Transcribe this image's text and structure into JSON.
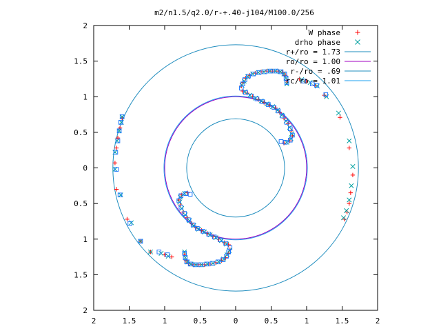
{
  "chart_data": {
    "type": "scatter",
    "title": "m2/n1.5/q2.0/r-+.40-j104/M100.0/256",
    "xlim": [
      -2,
      2
    ],
    "ylim": [
      -2,
      2
    ],
    "x_ticks": [
      {
        "value": -2,
        "label": "2"
      },
      {
        "value": -1.5,
        "label": "1.5"
      },
      {
        "value": -1,
        "label": "1"
      },
      {
        "value": -0.5,
        "label": "0.5"
      },
      {
        "value": 0,
        "label": "0"
      },
      {
        "value": 0.5,
        "label": "0.5"
      },
      {
        "value": 1,
        "label": "1"
      },
      {
        "value": 1.5,
        "label": "1.5"
      },
      {
        "value": 2,
        "label": "2"
      }
    ],
    "y_ticks": [
      {
        "value": 2,
        "label": "2"
      },
      {
        "value": 1.5,
        "label": "1.5"
      },
      {
        "value": 1,
        "label": "1"
      },
      {
        "value": 0.5,
        "label": "0.5"
      },
      {
        "value": 0,
        "label": "0"
      },
      {
        "value": -0.5,
        "label": "0.5"
      },
      {
        "value": -1,
        "label": "1"
      },
      {
        "value": -1.5,
        "label": "1.5"
      },
      {
        "value": -2,
        "label": "2"
      }
    ],
    "legend_position": "top-right",
    "grid": false,
    "series": [
      {
        "name": "W phase",
        "marker": "plus",
        "color": "#ff0000",
        "points": [
          [
            0.08,
            1.15
          ],
          [
            0.1,
            1.2
          ],
          [
            0.14,
            1.26
          ],
          [
            0.2,
            1.3
          ],
          [
            0.28,
            1.33
          ],
          [
            0.36,
            1.35
          ],
          [
            0.44,
            1.36
          ],
          [
            0.52,
            1.36
          ],
          [
            0.6,
            1.36
          ],
          [
            0.66,
            1.34
          ],
          [
            0.7,
            1.3
          ],
          [
            0.72,
            1.22
          ],
          [
            0.1,
            1.08
          ],
          [
            0.16,
            1.05
          ],
          [
            0.24,
            1.0
          ],
          [
            0.32,
            0.96
          ],
          [
            0.4,
            0.92
          ],
          [
            0.48,
            0.88
          ],
          [
            0.56,
            0.84
          ],
          [
            0.62,
            0.78
          ],
          [
            0.68,
            0.7
          ],
          [
            0.74,
            0.62
          ],
          [
            0.78,
            0.52
          ],
          [
            0.8,
            0.45
          ],
          [
            0.76,
            0.38
          ],
          [
            0.68,
            0.35
          ],
          [
            0.9,
            1.25
          ],
          [
            1.0,
            1.22
          ],
          [
            1.12,
            1.16
          ],
          [
            1.25,
            1.02
          ],
          [
            1.47,
            0.71
          ],
          [
            1.6,
            0.28
          ],
          [
            1.65,
            -0.1
          ],
          [
            1.62,
            -0.35
          ],
          [
            1.6,
            -0.5
          ],
          [
            1.57,
            -0.62
          ],
          [
            1.53,
            -0.72
          ],
          [
            -0.08,
            -1.15
          ],
          [
            -0.1,
            -1.2
          ],
          [
            -0.14,
            -1.26
          ],
          [
            -0.2,
            -1.3
          ],
          [
            -0.28,
            -1.33
          ],
          [
            -0.36,
            -1.35
          ],
          [
            -0.44,
            -1.36
          ],
          [
            -0.52,
            -1.36
          ],
          [
            -0.6,
            -1.36
          ],
          [
            -0.66,
            -1.34
          ],
          [
            -0.7,
            -1.3
          ],
          [
            -0.72,
            -1.22
          ],
          [
            -0.1,
            -1.08
          ],
          [
            -0.16,
            -1.05
          ],
          [
            -0.24,
            -1.0
          ],
          [
            -0.32,
            -0.96
          ],
          [
            -0.4,
            -0.92
          ],
          [
            -0.48,
            -0.88
          ],
          [
            -0.56,
            -0.84
          ],
          [
            -0.62,
            -0.78
          ],
          [
            -0.68,
            -0.7
          ],
          [
            -0.74,
            -0.62
          ],
          [
            -0.78,
            -0.52
          ],
          [
            -0.8,
            -0.45
          ],
          [
            -0.76,
            -0.38
          ],
          [
            -0.68,
            -0.35
          ],
          [
            -0.9,
            -1.25
          ],
          [
            -1.0,
            -1.22
          ],
          [
            -1.2,
            -1.18
          ],
          [
            -1.34,
            -1.03
          ],
          [
            -1.53,
            -0.72
          ],
          [
            -1.68,
            -0.3
          ],
          [
            -1.7,
            0.07
          ],
          [
            -1.68,
            0.28
          ],
          [
            -1.66,
            0.42
          ],
          [
            -1.63,
            0.56
          ],
          [
            -1.6,
            0.7
          ]
        ]
      },
      {
        "name": "drho phase",
        "marker": "cross",
        "color": "#00a0a0",
        "points": [
          [
            0.09,
            1.16
          ],
          [
            0.12,
            1.22
          ],
          [
            0.17,
            1.28
          ],
          [
            0.24,
            1.32
          ],
          [
            0.32,
            1.34
          ],
          [
            0.4,
            1.35
          ],
          [
            0.48,
            1.36
          ],
          [
            0.56,
            1.36
          ],
          [
            0.63,
            1.35
          ],
          [
            0.68,
            1.32
          ],
          [
            0.71,
            1.26
          ],
          [
            0.72,
            1.18
          ],
          [
            0.13,
            1.07
          ],
          [
            0.2,
            1.02
          ],
          [
            0.28,
            0.98
          ],
          [
            0.36,
            0.94
          ],
          [
            0.44,
            0.9
          ],
          [
            0.52,
            0.86
          ],
          [
            0.59,
            0.81
          ],
          [
            0.65,
            0.74
          ],
          [
            0.71,
            0.66
          ],
          [
            0.76,
            0.57
          ],
          [
            0.79,
            0.48
          ],
          [
            0.78,
            0.41
          ],
          [
            0.72,
            0.36
          ],
          [
            0.93,
            1.24
          ],
          [
            1.05,
            1.2
          ],
          [
            1.15,
            1.15
          ],
          [
            1.28,
            1.0
          ],
          [
            1.45,
            0.77
          ],
          [
            1.6,
            0.38
          ],
          [
            1.65,
            0.02
          ],
          [
            1.63,
            -0.25
          ],
          [
            1.6,
            -0.45
          ],
          [
            1.56,
            -0.6
          ],
          [
            1.52,
            -0.7
          ],
          [
            -0.09,
            -1.16
          ],
          [
            -0.12,
            -1.22
          ],
          [
            -0.17,
            -1.28
          ],
          [
            -0.24,
            -1.32
          ],
          [
            -0.32,
            -1.34
          ],
          [
            -0.4,
            -1.35
          ],
          [
            -0.48,
            -1.36
          ],
          [
            -0.56,
            -1.36
          ],
          [
            -0.63,
            -1.35
          ],
          [
            -0.68,
            -1.32
          ],
          [
            -0.71,
            -1.26
          ],
          [
            -0.72,
            -1.18
          ],
          [
            -0.13,
            -1.07
          ],
          [
            -0.2,
            -1.02
          ],
          [
            -0.28,
            -0.98
          ],
          [
            -0.36,
            -0.94
          ],
          [
            -0.44,
            -0.9
          ],
          [
            -0.52,
            -0.86
          ],
          [
            -0.59,
            -0.81
          ],
          [
            -0.65,
            -0.74
          ],
          [
            -0.71,
            -0.66
          ],
          [
            -0.76,
            -0.57
          ],
          [
            -0.79,
            -0.48
          ],
          [
            -0.78,
            -0.41
          ],
          [
            -0.72,
            -0.36
          ],
          [
            -0.95,
            -1.24
          ],
          [
            -1.05,
            -1.2
          ],
          [
            -1.2,
            -1.18
          ],
          [
            -1.34,
            -1.03
          ],
          [
            -1.47,
            -0.77
          ],
          [
            -1.62,
            -0.38
          ],
          [
            -1.7,
            -0.02
          ],
          [
            -1.7,
            0.22
          ],
          [
            -1.67,
            0.38
          ],
          [
            -1.64,
            0.52
          ],
          [
            -1.61,
            0.64
          ],
          [
            -1.6,
            0.72
          ]
        ]
      },
      {
        "name": "",
        "marker": "square",
        "color": "#1e78ff",
        "points": [
          [
            0.08,
            1.12
          ],
          [
            0.1,
            1.18
          ],
          [
            0.13,
            1.24
          ],
          [
            0.18,
            1.29
          ],
          [
            0.25,
            1.32
          ],
          [
            0.33,
            1.34
          ],
          [
            0.41,
            1.35
          ],
          [
            0.49,
            1.36
          ],
          [
            0.57,
            1.36
          ],
          [
            0.64,
            1.35
          ],
          [
            0.69,
            1.32
          ],
          [
            0.71,
            1.26
          ],
          [
            0.72,
            1.2
          ],
          [
            0.14,
            1.06
          ],
          [
            0.22,
            1.01
          ],
          [
            0.3,
            0.97
          ],
          [
            0.38,
            0.93
          ],
          [
            0.46,
            0.89
          ],
          [
            0.54,
            0.85
          ],
          [
            0.6,
            0.8
          ],
          [
            0.66,
            0.73
          ],
          [
            0.72,
            0.64
          ],
          [
            0.77,
            0.55
          ],
          [
            0.8,
            0.46
          ],
          [
            0.77,
            0.39
          ],
          [
            0.7,
            0.36
          ],
          [
            0.64,
            0.37
          ],
          [
            0.96,
            1.22
          ],
          [
            1.08,
            1.18
          ],
          [
            1.14,
            1.16
          ],
          [
            1.27,
            1.03
          ],
          [
            -0.08,
            -1.12
          ],
          [
            -0.1,
            -1.18
          ],
          [
            -0.13,
            -1.24
          ],
          [
            -0.18,
            -1.29
          ],
          [
            -0.25,
            -1.32
          ],
          [
            -0.33,
            -1.34
          ],
          [
            -0.41,
            -1.35
          ],
          [
            -0.49,
            -1.36
          ],
          [
            -0.57,
            -1.36
          ],
          [
            -0.64,
            -1.35
          ],
          [
            -0.69,
            -1.32
          ],
          [
            -0.71,
            -1.26
          ],
          [
            -0.72,
            -1.2
          ],
          [
            -0.14,
            -1.06
          ],
          [
            -0.22,
            -1.01
          ],
          [
            -0.3,
            -0.97
          ],
          [
            -0.38,
            -0.93
          ],
          [
            -0.46,
            -0.89
          ],
          [
            -0.54,
            -0.85
          ],
          [
            -0.6,
            -0.8
          ],
          [
            -0.66,
            -0.73
          ],
          [
            -0.72,
            -0.64
          ],
          [
            -0.77,
            -0.55
          ],
          [
            -0.8,
            -0.46
          ],
          [
            -0.77,
            -0.39
          ],
          [
            -0.7,
            -0.36
          ],
          [
            -0.64,
            -0.37
          ],
          [
            -0.96,
            -1.22
          ],
          [
            -1.08,
            -1.18
          ],
          [
            -1.34,
            -1.03
          ],
          [
            -1.49,
            -0.78
          ],
          [
            -1.63,
            -0.38
          ],
          [
            -1.68,
            -0.02
          ],
          [
            -1.69,
            0.22
          ],
          [
            -1.66,
            0.38
          ],
          [
            -1.64,
            0.52
          ],
          [
            -1.62,
            0.64
          ],
          [
            -1.6,
            0.72
          ]
        ]
      },
      {
        "name": "r+/ro = 1.73",
        "type": "circle",
        "radius": 1.73,
        "color": "#1e8cbe"
      },
      {
        "name": "ro/ro = 1.00",
        "type": "circle",
        "radius": 1.0,
        "color": "#a000c0"
      },
      {
        "name": "r-/ro = .69",
        "type": "circle",
        "radius": 0.69,
        "color": "#1e8cbe"
      },
      {
        "name": "rc/ro = 1.01",
        "type": "circle",
        "radius": 1.01,
        "color": "#1ea0f0"
      }
    ]
  }
}
